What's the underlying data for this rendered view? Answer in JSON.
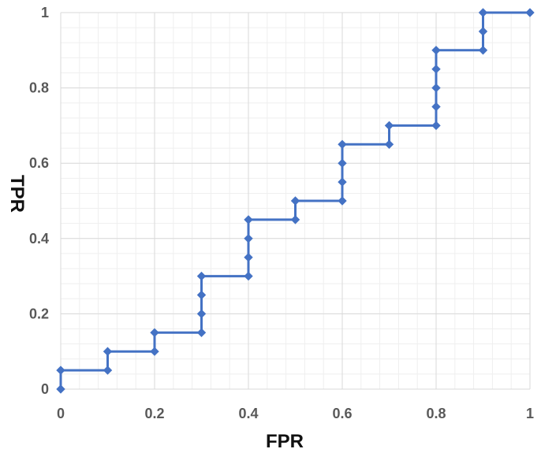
{
  "chart_data": {
    "type": "line",
    "title": "",
    "xlabel": "FPR",
    "ylabel": "TPR",
    "xlim": [
      0,
      1
    ],
    "ylim": [
      0,
      1
    ],
    "grid": true,
    "x_ticks": [
      {
        "value": 0,
        "label": "0"
      },
      {
        "value": 0.2,
        "label": "0.2"
      },
      {
        "value": 0.4,
        "label": "0.4"
      },
      {
        "value": 0.6,
        "label": "0.6"
      },
      {
        "value": 0.8,
        "label": "0.8"
      },
      {
        "value": 1,
        "label": "1"
      }
    ],
    "y_ticks": [
      {
        "value": 0,
        "label": "0"
      },
      {
        "value": 0.2,
        "label": "0.2"
      },
      {
        "value": 0.4,
        "label": "0.4"
      },
      {
        "value": 0.6,
        "label": "0.6"
      },
      {
        "value": 0.8,
        "label": "0.8"
      },
      {
        "value": 1,
        "label": "1"
      }
    ],
    "series": [
      {
        "color": "#4472C4",
        "points": [
          {
            "x": 0.0,
            "y": 0.0
          },
          {
            "x": 0.0,
            "y": 0.05
          },
          {
            "x": 0.1,
            "y": 0.05
          },
          {
            "x": 0.1,
            "y": 0.1
          },
          {
            "x": 0.2,
            "y": 0.1
          },
          {
            "x": 0.2,
            "y": 0.15
          },
          {
            "x": 0.3,
            "y": 0.15
          },
          {
            "x": 0.3,
            "y": 0.2
          },
          {
            "x": 0.3,
            "y": 0.25
          },
          {
            "x": 0.3,
            "y": 0.3
          },
          {
            "x": 0.4,
            "y": 0.3
          },
          {
            "x": 0.4,
            "y": 0.35
          },
          {
            "x": 0.4,
            "y": 0.4
          },
          {
            "x": 0.4,
            "y": 0.45
          },
          {
            "x": 0.5,
            "y": 0.45
          },
          {
            "x": 0.5,
            "y": 0.5
          },
          {
            "x": 0.6,
            "y": 0.5
          },
          {
            "x": 0.6,
            "y": 0.55
          },
          {
            "x": 0.6,
            "y": 0.6
          },
          {
            "x": 0.6,
            "y": 0.65
          },
          {
            "x": 0.7,
            "y": 0.65
          },
          {
            "x": 0.7,
            "y": 0.7
          },
          {
            "x": 0.8,
            "y": 0.7
          },
          {
            "x": 0.8,
            "y": 0.75
          },
          {
            "x": 0.8,
            "y": 0.8
          },
          {
            "x": 0.8,
            "y": 0.85
          },
          {
            "x": 0.8,
            "y": 0.9
          },
          {
            "x": 0.9,
            "y": 0.9
          },
          {
            "x": 0.9,
            "y": 0.95
          },
          {
            "x": 0.9,
            "y": 1.0
          },
          {
            "x": 1.0,
            "y": 1.0
          }
        ]
      }
    ]
  },
  "colors": {
    "series_line": "#4472C4",
    "major_grid": "#d9d9d9",
    "minor_grid": "#efefef",
    "tick_text": "#595959",
    "axis_title_text": "#111111"
  }
}
